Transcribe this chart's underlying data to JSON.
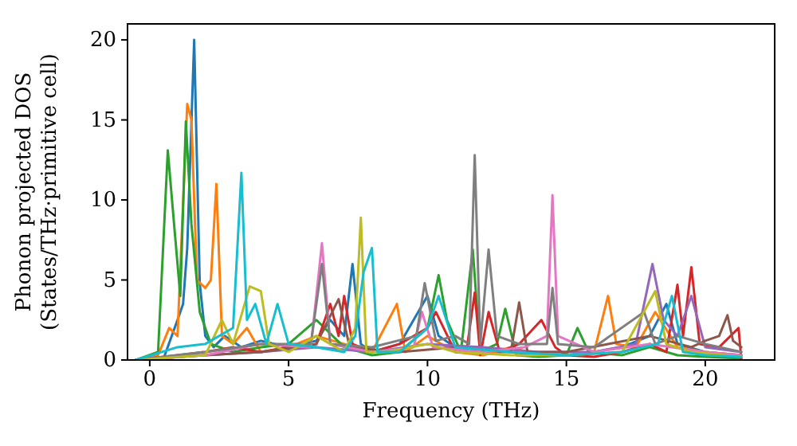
{
  "chart_data": {
    "type": "line",
    "xlabel": "Frequency (THz)",
    "ylabel": "Phonon projected DOS\n(States/THz·primitive cell)",
    "xlim": [
      -0.8,
      22.5
    ],
    "ylim": [
      0,
      21
    ],
    "xticks": [
      0,
      5,
      10,
      15,
      20
    ],
    "yticks": [
      0,
      5,
      10,
      15,
      20
    ],
    "marker": "none",
    "line_style": "solid",
    "series": [
      {
        "color": "#1f77b4",
        "x": [
          -0.5,
          0.5,
          1.0,
          1.2,
          1.35,
          1.6,
          1.8,
          2.0,
          2.3,
          2.7,
          3.3,
          4.0,
          5.0,
          6.0,
          6.5,
          7.0,
          7.3,
          7.6,
          8.0,
          9.0,
          10.0,
          10.4,
          11.0,
          12.0,
          13.0,
          14.0,
          15.0,
          16.0,
          17.0,
          18.0,
          18.6,
          19.0,
          20.0,
          21.3
        ],
        "values": [
          0,
          0.1,
          2.5,
          3.5,
          7,
          20,
          4.8,
          1.5,
          0.8,
          1.5,
          0.8,
          1.2,
          0.8,
          1.2,
          2.5,
          1.5,
          6.0,
          1.0,
          0.5,
          1.0,
          4.0,
          1.5,
          0.8,
          0.5,
          0.5,
          0.3,
          0.3,
          0.5,
          0.8,
          1.5,
          3.5,
          1.0,
          0.5,
          0.3
        ]
      },
      {
        "color": "#ff7f0e",
        "x": [
          -0.5,
          0.3,
          0.7,
          1.0,
          1.35,
          1.5,
          1.7,
          2.0,
          2.2,
          2.4,
          2.6,
          3.0,
          3.5,
          4.0,
          5.0,
          6.0,
          7.0,
          8.0,
          8.9,
          9.2,
          10.0,
          11.0,
          12.0,
          13.0,
          14.0,
          15.0,
          16.0,
          16.5,
          16.8,
          17.5,
          18.2,
          19.0,
          20.0,
          21.3
        ],
        "values": [
          0,
          0.3,
          2.0,
          1.5,
          16,
          15,
          5,
          4.5,
          5,
          11,
          1.5,
          1.0,
          2.0,
          0.5,
          0.8,
          1.5,
          1.0,
          0.5,
          3.5,
          0.5,
          1.5,
          0.5,
          0.3,
          0.8,
          0.3,
          0.3,
          0.5,
          4.0,
          1.0,
          0.8,
          3.0,
          0.8,
          0.5,
          0.3
        ]
      },
      {
        "color": "#2ca02c",
        "x": [
          -0.5,
          0.3,
          0.65,
          0.9,
          1.1,
          1.3,
          1.5,
          1.8,
          2.2,
          3.0,
          4.0,
          5.0,
          6.0,
          7.0,
          8.0,
          9.0,
          10.0,
          10.4,
          10.7,
          11.2,
          11.63,
          11.9,
          12.5,
          12.8,
          13.2,
          14.0,
          15.0,
          15.4,
          15.8,
          17.0,
          18.0,
          19.0,
          20.0,
          21.3
        ],
        "values": [
          0,
          0.5,
          13.1,
          8,
          4,
          14.9,
          8.5,
          3,
          1.0,
          0.5,
          0.8,
          1.0,
          2.5,
          0.8,
          0.3,
          0.5,
          2.0,
          5.3,
          2.5,
          0.5,
          6.9,
          0.5,
          1.0,
          3.2,
          0.3,
          0.2,
          0.3,
          2.0,
          0.5,
          0.3,
          0.8,
          0.3,
          0.2,
          0.1
        ]
      },
      {
        "color": "#d62728",
        "x": [
          -0.5,
          1.0,
          2.0,
          3.0,
          4.0,
          5.0,
          6.0,
          6.5,
          6.8,
          7.0,
          7.3,
          8.0,
          9.0,
          10.0,
          10.3,
          11.0,
          11.4,
          11.7,
          11.9,
          12.2,
          12.6,
          13.3,
          14.1,
          14.6,
          15.0,
          16.0,
          17.0,
          18.0,
          18.6,
          19.0,
          19.2,
          19.5,
          19.8,
          20.5,
          21.2,
          21.3
        ],
        "values": [
          0,
          0.3,
          0.5,
          0.8,
          0.5,
          0.8,
          1.0,
          3.5,
          1.5,
          4.0,
          1.0,
          0.5,
          1.0,
          2.0,
          3.0,
          0.5,
          0.5,
          4.2,
          0.3,
          3.0,
          0.5,
          1.0,
          2.5,
          0.8,
          0.3,
          0.2,
          0.5,
          1.0,
          0.5,
          4.7,
          1.5,
          5.8,
          1.0,
          0.8,
          2.0,
          0
        ]
      },
      {
        "color": "#9467bd",
        "x": [
          -0.5,
          2.0,
          4.0,
          6.0,
          8.0,
          10.0,
          12.0,
          14.0,
          16.0,
          17.5,
          18.1,
          18.5,
          19.0,
          19.5,
          20.0,
          21.3
        ],
        "values": [
          0,
          0.3,
          0.5,
          0.8,
          0.5,
          1.0,
          0.8,
          0.5,
          0.5,
          1.0,
          6.0,
          2.5,
          1.5,
          4.0,
          0.8,
          0.5
        ]
      },
      {
        "color": "#8c564b",
        "x": [
          -0.5,
          2.0,
          4.0,
          6.0,
          6.8,
          7.2,
          9.0,
          11.0,
          13.0,
          13.3,
          13.6,
          15.0,
          16.5,
          18.0,
          19.5,
          20.0,
          20.5,
          20.8,
          21.0,
          21.3
        ],
        "values": [
          0,
          0.3,
          0.5,
          1.0,
          3.8,
          0.8,
          0.5,
          0.8,
          0.5,
          3.6,
          0.5,
          0.5,
          1.0,
          1.5,
          0.8,
          1.2,
          1.5,
          2.8,
          1.2,
          0.8
        ]
      },
      {
        "color": "#e377c2",
        "x": [
          -0.5,
          2.0,
          4.0,
          5.8,
          6.2,
          6.5,
          8.0,
          9.5,
          9.8,
          10.2,
          12.0,
          13.5,
          14.3,
          14.5,
          14.7,
          16.0,
          18.0,
          20.0,
          21.3
        ],
        "values": [
          0,
          0.3,
          1.0,
          0.8,
          7.3,
          1.0,
          0.5,
          0.8,
          3.0,
          0.8,
          0.5,
          0.8,
          1.5,
          10.3,
          1.5,
          0.5,
          1.0,
          0.5,
          0.3
        ]
      },
      {
        "color": "#7f7f7f",
        "x": [
          -0.5,
          2.0,
          4.0,
          5.8,
          6.2,
          6.5,
          8.0,
          9.6,
          9.9,
          10.3,
          11.0,
          11.5,
          11.7,
          11.9,
          12.2,
          12.5,
          13.3,
          14.3,
          14.5,
          14.7,
          16.0,
          17.8,
          18.2,
          19.0,
          20.0,
          21.3
        ],
        "values": [
          0,
          0.5,
          1.0,
          1.0,
          6.0,
          1.0,
          0.8,
          1.5,
          4.8,
          1.2,
          1.5,
          1.0,
          12.8,
          1.0,
          6.9,
          1.5,
          1.0,
          1.0,
          4.5,
          1.0,
          0.8,
          3.0,
          1.0,
          1.5,
          1.0,
          0.5
        ]
      },
      {
        "color": "#bcbd22",
        "x": [
          -0.5,
          2.0,
          2.6,
          3.0,
          3.6,
          4.0,
          4.3,
          5.0,
          6.0,
          7.0,
          7.4,
          7.6,
          7.8,
          8.5,
          10.0,
          11.0,
          13.0,
          15.0,
          17.0,
          18.2,
          18.6,
          19.5,
          21.3
        ],
        "values": [
          0,
          0.3,
          2.5,
          1.0,
          4.6,
          4.3,
          1.0,
          0.5,
          1.5,
          0.5,
          2.0,
          8.9,
          0.5,
          0.5,
          1.0,
          0.5,
          0.3,
          0.3,
          0.5,
          4.3,
          1.0,
          0.5,
          0.2
        ]
      },
      {
        "color": "#17becf",
        "x": [
          -0.5,
          1.0,
          2.0,
          3.0,
          3.3,
          3.5,
          3.8,
          4.2,
          4.6,
          5.0,
          6.0,
          7.0,
          7.4,
          7.7,
          8.0,
          8.2,
          9.0,
          10.0,
          10.4,
          11.0,
          13.0,
          15.0,
          17.0,
          18.3,
          18.8,
          19.2,
          20.0,
          21.3
        ],
        "values": [
          0,
          0.8,
          1.0,
          2.0,
          11.7,
          2.5,
          3.5,
          1.0,
          3.5,
          1.0,
          0.8,
          0.5,
          1.5,
          5.5,
          7.0,
          0.5,
          0.5,
          2.0,
          4.0,
          0.8,
          0.5,
          0.3,
          0.5,
          1.0,
          4.0,
          0.5,
          0.3,
          0.2
        ]
      }
    ]
  }
}
